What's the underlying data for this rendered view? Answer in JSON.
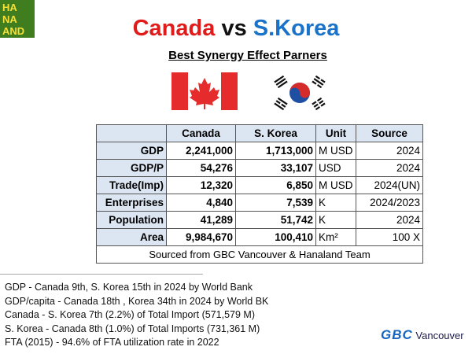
{
  "logo": [
    "HA",
    "NA",
    "AND"
  ],
  "title": {
    "canada": "Canada",
    "vs": "vs",
    "korea": "S.Korea"
  },
  "subtitle": "Best Synergy Effect Parners",
  "table": {
    "header": [
      "Canada",
      "S. Korea",
      "Unit",
      "Source"
    ],
    "rows": [
      [
        "GDP",
        "2,241,000",
        "1,713,000",
        "M USD",
        "2024"
      ],
      [
        "GDP/P",
        "54,276",
        "33,107",
        "USD",
        "2024"
      ],
      [
        "Trade(Imp)",
        "12,320",
        "6,850",
        "M USD",
        "2024(UN)"
      ],
      [
        "Enterprises",
        "4,840",
        "7,539",
        "K",
        "2024/2023"
      ],
      [
        "Population",
        "41,289",
        "51,742",
        "K",
        "2024"
      ],
      [
        "Area",
        "9,984,670",
        "100,410",
        "Km²",
        "100 X"
      ]
    ],
    "footer": "Sourced from GBC Vancouver & Hanaland Team"
  },
  "notes": [
    "GDP - Canada 9th, S. Korea 15th in 2024 by World Bank",
    "GDP/capita - Canada 18th  , Korea 34th in 2024 by World BK",
    "Canada - S. Korea 7th (2.2%) of Total Import (571,579 M)",
    "S. Korea - Canada 8th (1.0%) of Total Imports (731,361 M)",
    "FTA (2015) - 94.6% of FTA utilization rate in 2022"
  ],
  "brand": {
    "gbc": "GBC",
    "city": "Vancouver"
  }
}
